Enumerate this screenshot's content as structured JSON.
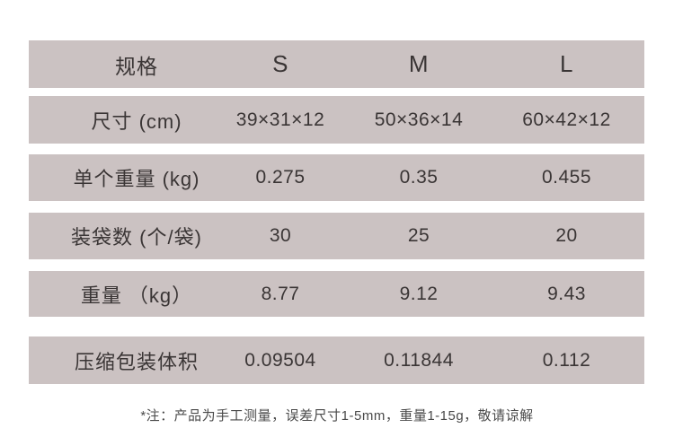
{
  "table": {
    "band_color": "#cbc2c2",
    "text_color": "#3a3535",
    "header": {
      "label": "规格",
      "cols": [
        "S",
        "M",
        "L"
      ]
    },
    "rows": [
      {
        "label": "尺寸 (cm)",
        "values": [
          "39×31×12",
          "50×36×14",
          "60×42×12"
        ]
      },
      {
        "label": "单个重量 (kg)",
        "values": [
          "0.275",
          "0.35",
          "0.455"
        ]
      },
      {
        "label": "装袋数 (个/袋)",
        "values": [
          "30",
          "25",
          "20"
        ]
      },
      {
        "label": "重量 （kg）",
        "values": [
          "8.77",
          "9.12",
          "9.43"
        ]
      },
      {
        "label": "压缩包装体积",
        "values": [
          "0.09504",
          "0.11844",
          "0.112"
        ]
      }
    ]
  },
  "note": "*注：产品为手工测量，误差尺寸1-5mm，重量1-15g，敬请谅解"
}
